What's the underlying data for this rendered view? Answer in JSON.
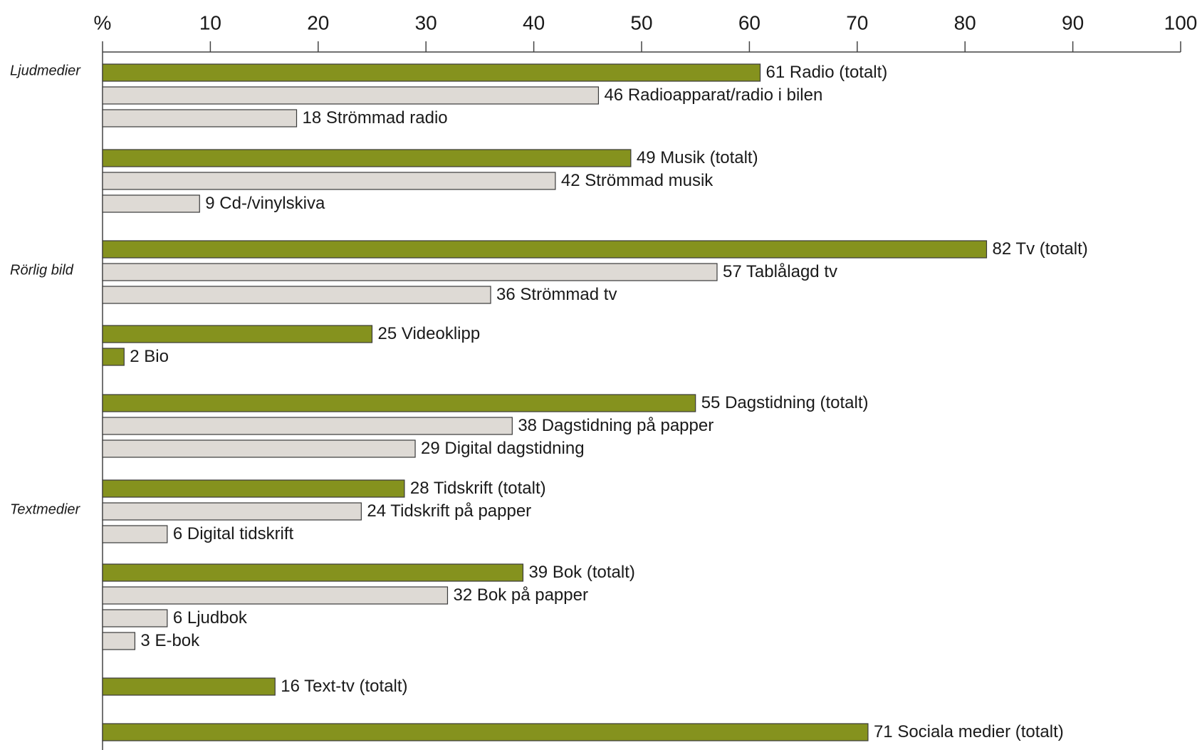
{
  "chart_data": {
    "type": "bar",
    "orientation": "horizontal",
    "x_unit_label": "%",
    "xlim": [
      0,
      100
    ],
    "xticks": [
      10,
      20,
      30,
      40,
      50,
      60,
      70,
      80,
      90,
      100
    ],
    "grid": false,
    "legend": "none",
    "colors": {
      "total": "#85921e",
      "sub": "#dedad5",
      "border": "#3a3a3a"
    },
    "groups": [
      {
        "label": "Ljudmedier",
        "at_bar": 0
      },
      {
        "label": "Rörlig bild",
        "at_bar": 7
      },
      {
        "label": "Textmedier",
        "at_bar": 15
      }
    ],
    "bars": [
      {
        "label": "Radio (totalt)",
        "value": 61,
        "kind": "total"
      },
      {
        "label": "Radioapparat/radio i bilen",
        "value": 46,
        "kind": "sub"
      },
      {
        "label": "Strömmad radio",
        "value": 18,
        "kind": "sub"
      },
      {
        "label": "Musik (totalt)",
        "value": 49,
        "kind": "total"
      },
      {
        "label": "Strömmad musik",
        "value": 42,
        "kind": "sub"
      },
      {
        "label": "Cd-/vinylskiva",
        "value": 9,
        "kind": "sub"
      },
      {
        "label": "Tv (totalt)",
        "value": 82,
        "kind": "total"
      },
      {
        "label": "Tablålagd tv",
        "value": 57,
        "kind": "sub"
      },
      {
        "label": "Strömmad tv",
        "value": 36,
        "kind": "sub"
      },
      {
        "label": "Videoklipp",
        "value": 25,
        "kind": "total"
      },
      {
        "label": "Bio",
        "value": 2,
        "kind": "total"
      },
      {
        "label": "Dagstidning (totalt)",
        "value": 55,
        "kind": "total"
      },
      {
        "label": "Dagstidning på papper",
        "value": 38,
        "kind": "sub"
      },
      {
        "label": "Digital dagstidning",
        "value": 29,
        "kind": "sub"
      },
      {
        "label": "Tidskrift (totalt)",
        "value": 28,
        "kind": "total"
      },
      {
        "label": "Tidskrift på papper",
        "value": 24,
        "kind": "sub"
      },
      {
        "label": "Digital tidskrift",
        "value": 6,
        "kind": "sub"
      },
      {
        "label": "Bok (totalt)",
        "value": 39,
        "kind": "total"
      },
      {
        "label": "Bok på papper",
        "value": 32,
        "kind": "sub"
      },
      {
        "label": "Ljudbok",
        "value": 6,
        "kind": "sub"
      },
      {
        "label": "E-bok",
        "value": 3,
        "kind": "sub"
      },
      {
        "label": "Text-tv (totalt)",
        "value": 16,
        "kind": "total"
      },
      {
        "label": "Sociala medier (totalt)",
        "value": 71,
        "kind": "total"
      }
    ]
  }
}
